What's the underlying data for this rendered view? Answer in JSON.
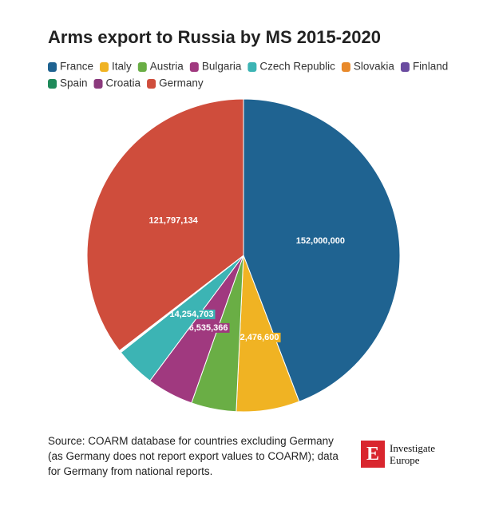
{
  "chart_data": {
    "type": "pie",
    "title": "Arms export to Russia by MS 2015-2020",
    "categories": [
      "France",
      "Italy",
      "Austria",
      "Bulgaria",
      "Czech Republic",
      "Slovakia",
      "Finland",
      "Spain",
      "Croatia",
      "Germany"
    ],
    "values": [
      152000000,
      22476600,
      16000000,
      16535366,
      14254703,
      200000,
      200000,
      200000,
      200000,
      121797134
    ],
    "value_labels": [
      "152,000,000",
      "22,476,600",
      null,
      "16,535,366",
      "14,254,703",
      null,
      null,
      null,
      null,
      "121,797,134"
    ],
    "colors": [
      "#1f6391",
      "#f0b323",
      "#6aae45",
      "#a0397f",
      "#3cb4b4",
      "#e8892a",
      "#6a4ba0",
      "#1f8a5a",
      "#8b3a7d",
      "#cf4d3c"
    ],
    "legend": "top-left",
    "source": "Source: COARM database for countries excluding Germany (as Germany does not report export values to COARM); data for Germany from national reports."
  },
  "branding": [
    "Investigate",
    "Europe"
  ]
}
